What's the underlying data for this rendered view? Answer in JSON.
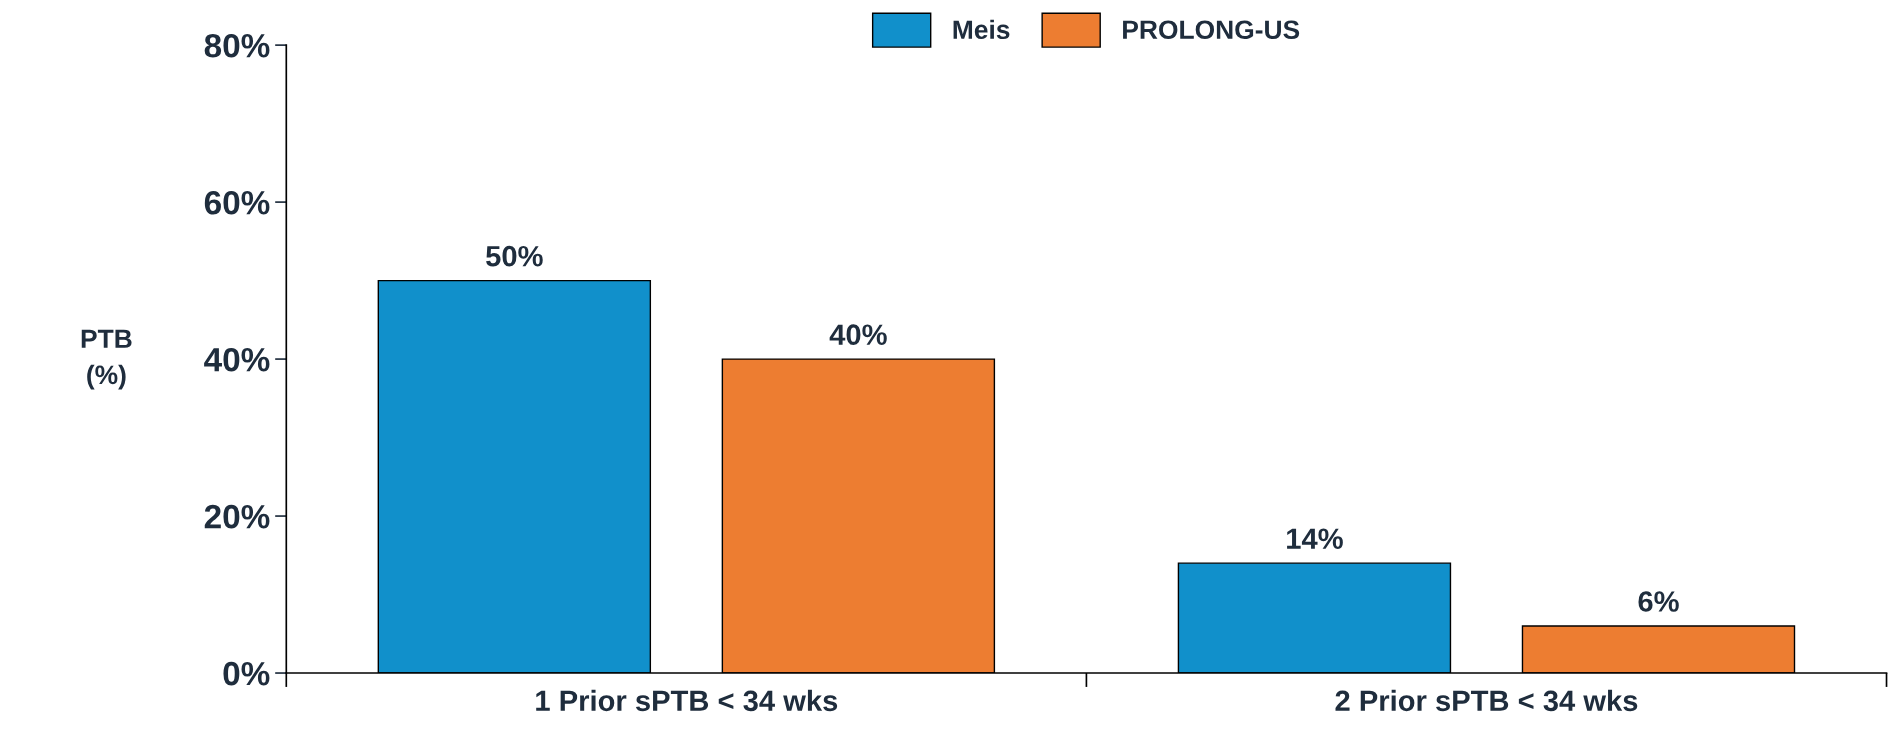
{
  "chart_data": {
    "type": "bar",
    "ylabel": "PTB\n(%)",
    "categories": [
      "1 Prior sPTB < 34 wks",
      "2 Prior sPTB < 34 wks"
    ],
    "series": [
      {
        "name": "Meis",
        "color": "#1190cb",
        "values": [
          50,
          14
        ],
        "value_labels": [
          "50%",
          "14%"
        ]
      },
      {
        "name": "PROLONG-US",
        "color": "#ed7d31",
        "values": [
          40,
          6
        ],
        "value_labels": [
          "40%",
          "6%"
        ]
      }
    ],
    "ylim": [
      0,
      80
    ],
    "yticks": [
      {
        "value": 0,
        "label": "0%"
      },
      {
        "value": 20,
        "label": "20%"
      },
      {
        "value": 40,
        "label": "40%"
      },
      {
        "value": 60,
        "label": "60%"
      },
      {
        "value": 80,
        "label": "80%"
      }
    ],
    "grid": false,
    "legend": "top"
  }
}
